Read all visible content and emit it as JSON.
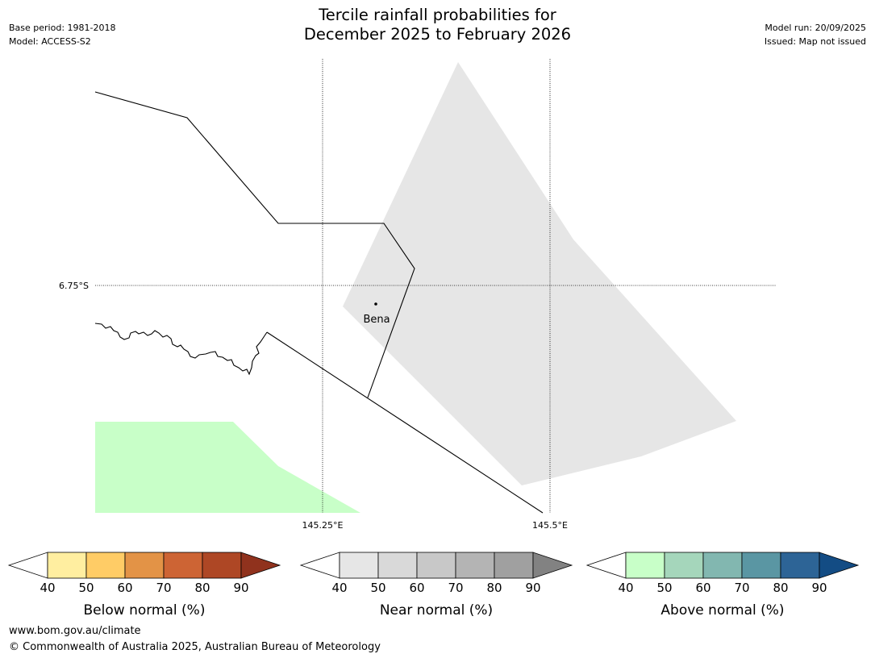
{
  "header": {
    "title_line1": "Tercile rainfall probabilities for",
    "title_line2": "December 2025 to February 2026",
    "base_period": "Base period: 1981-2018",
    "model": "Model: ACCESS-S2",
    "model_run": "Model run: 20/09/2025",
    "issued": "Issued: Map not issued"
  },
  "map": {
    "lat_label": "6.75°S",
    "lon_labels": [
      "145.25°E",
      "145.5°E"
    ],
    "place_label": "Bena",
    "colors": {
      "near_normal_region": "#e6e6e6",
      "above_normal_region": "#c8ffc8",
      "boundary": "#000000"
    }
  },
  "legends": [
    {
      "name": "below",
      "label": "Below normal (%)",
      "ticks": [
        "40",
        "50",
        "60",
        "70",
        "80",
        "90"
      ],
      "colors": [
        "#ffeea0",
        "#ffcc66",
        "#e39346",
        "#cd6434",
        "#ae4725"
      ],
      "extend_color": "#90321d"
    },
    {
      "name": "near",
      "label": "Near normal (%)",
      "ticks": [
        "40",
        "50",
        "60",
        "70",
        "80",
        "90"
      ],
      "colors": [
        "#e6e6e6",
        "#d9d9d9",
        "#c8c8c8",
        "#b4b4b4",
        "#a0a0a0"
      ],
      "extend_color": "#828282"
    },
    {
      "name": "above",
      "label": "Above normal (%)",
      "ticks": [
        "40",
        "50",
        "60",
        "70",
        "80",
        "90"
      ],
      "colors": [
        "#c8ffc8",
        "#a5d6bb",
        "#82b7b0",
        "#5a96a3",
        "#2d6496"
      ],
      "extend_color": "#134c84"
    }
  ],
  "footer": {
    "url": "www.bom.gov.au/climate",
    "copyright": "© Commonwealth of Australia 2025, Australian Bureau of Meteorology"
  }
}
